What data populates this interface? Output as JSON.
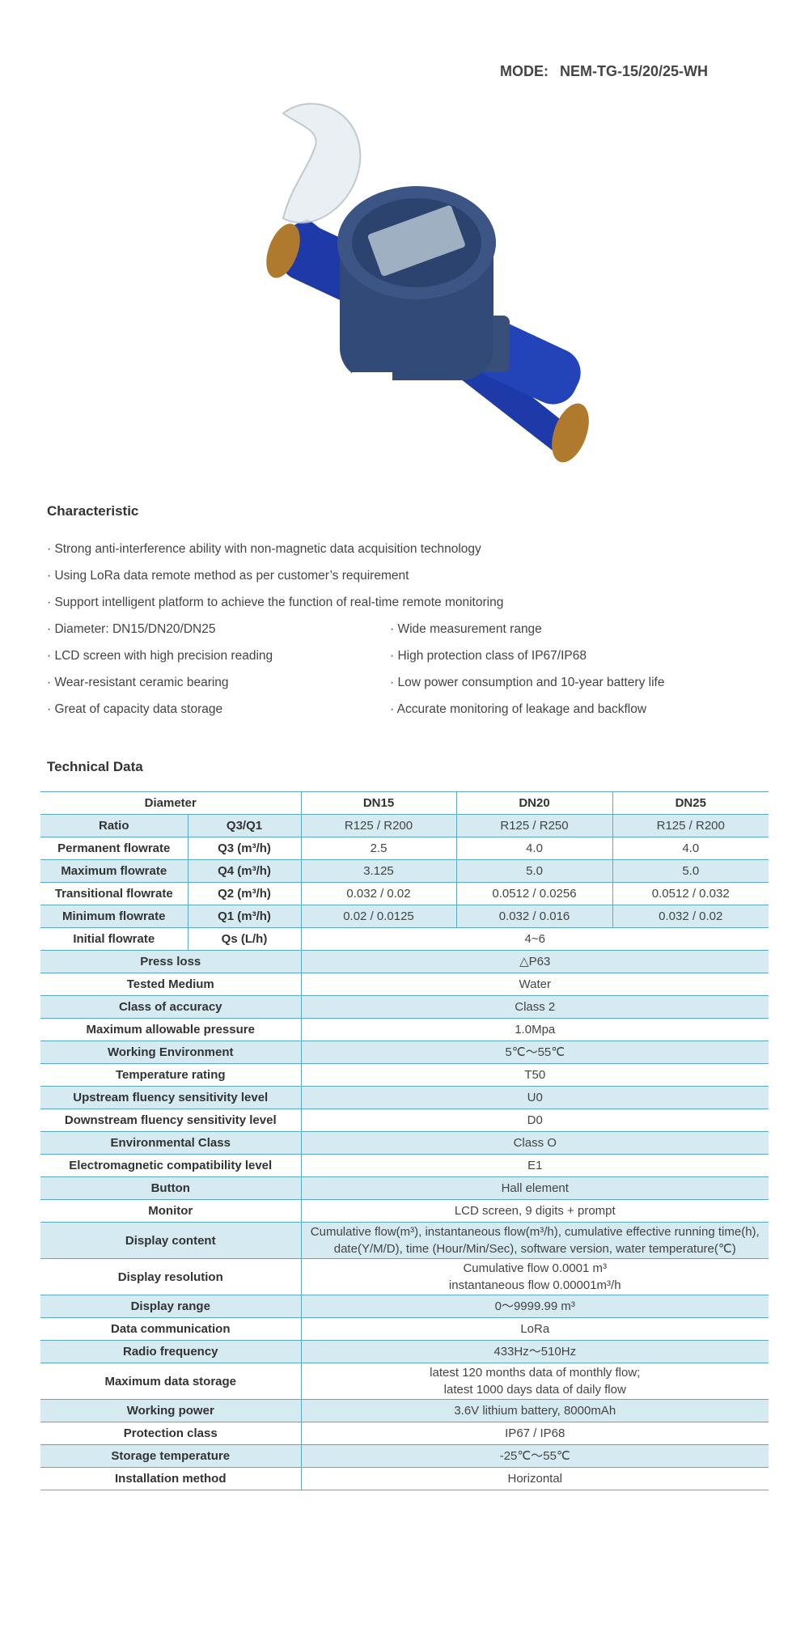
{
  "header": {
    "mode_label": "MODE:",
    "mode_value": "NEM-TG-15/20/25-WH"
  },
  "product_image": {
    "label": "water-meter-photo",
    "colors": {
      "body": "#1d3aa8",
      "cap": "#3a4f78",
      "brass": "#b07a2e"
    }
  },
  "characteristic": {
    "title": "Characteristic",
    "full": [
      "· Strong anti-interference ability with non-magnetic data acquisition technology",
      "· Using LoRa data remote method as per customer’s requirement",
      "· Support intelligent platform to achieve the function of real-time remote monitoring"
    ],
    "left": [
      "· Diameter: DN15/DN20/DN25",
      "· LCD screen with high precision reading",
      "· Wear-resistant ceramic bearing",
      "· Great of capacity data storage"
    ],
    "right": [
      "· Wide measurement range",
      "· High protection class of IP67/IP68",
      "· Low power consumption and 10-year battery life",
      "· Accurate monitoring of leakage and backflow"
    ]
  },
  "technical": {
    "title": "Technical Data",
    "header": {
      "label": "Diameter",
      "cols": [
        "DN15",
        "DN20",
        "DN25"
      ]
    },
    "split_rows": [
      {
        "label": "Ratio",
        "unit": "Q3/Q1",
        "values": [
          "R125 / R200",
          "R125 / R250",
          "R125 / R200"
        ]
      },
      {
        "label": "Permanent flowrate",
        "unit": "Q3 (m³/h)",
        "values": [
          "2.5",
          "4.0",
          "4.0"
        ]
      },
      {
        "label": "Maximum flowrate",
        "unit": "Q4 (m³/h)",
        "values": [
          "3.125",
          "5.0",
          "5.0"
        ]
      },
      {
        "label": "Transitional flowrate",
        "unit": "Q2 (m³/h)",
        "values": [
          "0.032 / 0.02",
          "0.0512 / 0.0256",
          "0.0512 / 0.032"
        ]
      },
      {
        "label": "Minimum flowrate",
        "unit": "Q1 (m³/h)",
        "values": [
          "0.02 / 0.0125",
          "0.032 / 0.016",
          "0.032 / 0.02"
        ]
      },
      {
        "label": "Initial flowrate",
        "unit": "Qs (L/h)",
        "value": "4~6"
      }
    ],
    "rows": [
      {
        "label": "Press loss",
        "value": "△P63"
      },
      {
        "label": "Tested Medium",
        "value": "Water"
      },
      {
        "label": "Class of accuracy",
        "value": "Class 2"
      },
      {
        "label": "Maximum allowable pressure",
        "value": "1.0Mpa"
      },
      {
        "label": "Working Environment",
        "value": "5℃～55℃"
      },
      {
        "label": "Temperature rating",
        "value": "T50"
      },
      {
        "label": "Upstream fluency sensitivity level",
        "value": "U0"
      },
      {
        "label": "Downstream fluency sensitivity level",
        "value": "D0"
      },
      {
        "label": "Environmental Class",
        "value": "Class O"
      },
      {
        "label": "Electromagnetic compatibility level",
        "value": "E1"
      },
      {
        "label": "Button",
        "value": "Hall element"
      },
      {
        "label": "Monitor",
        "value": "LCD screen, 9 digits + prompt"
      },
      {
        "label": "Display content",
        "value": "Cumulative flow(m³), instantaneous flow(m³/h), cumulative effective running time(h), date(Y/M/D), time (Hour/Min/Sec), software version, water temperature(℃)"
      },
      {
        "label": "Display resolution",
        "value": "Cumulative flow 0.0001 m³",
        "value2": "instantaneous flow 0.00001m³/h"
      },
      {
        "label": "Display range",
        "value": "0～9999.99 m³"
      },
      {
        "label": "Data communication",
        "value": "LoRa"
      },
      {
        "label": "Radio frequency",
        "value": "433Hz～510Hz"
      },
      {
        "label": "Maximum data storage",
        "value": "latest 120 months data of monthly flow;",
        "value2": "latest 1000 days data of daily flow"
      },
      {
        "label": "Working power",
        "value": "3.6V lithium battery, 8000mAh"
      },
      {
        "label": "Protection class",
        "value": "IP67 / IP68"
      },
      {
        "label": "Storage temperature",
        "value": "-25℃～55℃"
      },
      {
        "label": "Installation method",
        "value": "Horizontal"
      }
    ]
  }
}
